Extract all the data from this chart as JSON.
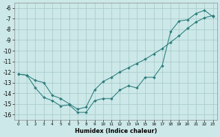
{
  "xlabel": "Humidex (Indice chaleur)",
  "xlim": [
    -0.5,
    23.5
  ],
  "ylim": [
    -16.5,
    -5.5
  ],
  "yticks": [
    -16,
    -15,
    -14,
    -13,
    -12,
    -11,
    -10,
    -9,
    -8,
    -7,
    -6
  ],
  "xticks": [
    0,
    1,
    2,
    3,
    4,
    5,
    6,
    7,
    8,
    9,
    10,
    11,
    12,
    13,
    14,
    15,
    16,
    17,
    18,
    19,
    20,
    21,
    22,
    23
  ],
  "background_color": "#cce8e8",
  "grid_color": "#aacccc",
  "line_color": "#2d7d7d",
  "line1_x": [
    0,
    1,
    2,
    3,
    4,
    5,
    6,
    7,
    8,
    9,
    10,
    11,
    12,
    13,
    14,
    15,
    16,
    17,
    18,
    19,
    20,
    21,
    22,
    23
  ],
  "line1_y": [
    -12.2,
    -12.3,
    -13.5,
    -14.4,
    -14.7,
    -15.2,
    -15.1,
    -15.8,
    -15.8,
    -14.7,
    -14.5,
    -14.5,
    -13.7,
    -13.3,
    -13.5,
    -12.5,
    -12.5,
    -11.4,
    -8.2,
    -7.2,
    -7.1,
    -6.5,
    -6.2,
    -6.8
  ],
  "line2_x": [
    0,
    1,
    2,
    3,
    4,
    5,
    6,
    7,
    8,
    9,
    10,
    11,
    12,
    13,
    14,
    15,
    16,
    17,
    18,
    19,
    20,
    21,
    22,
    23
  ],
  "line2_y": [
    -12.2,
    -12.3,
    -12.8,
    -13.0,
    -14.2,
    -14.5,
    -15.0,
    -15.5,
    -15.3,
    -13.7,
    -12.9,
    -12.5,
    -12.0,
    -11.6,
    -11.2,
    -10.8,
    -10.3,
    -9.8,
    -9.2,
    -8.6,
    -7.9,
    -7.3,
    -6.9,
    -6.7
  ]
}
